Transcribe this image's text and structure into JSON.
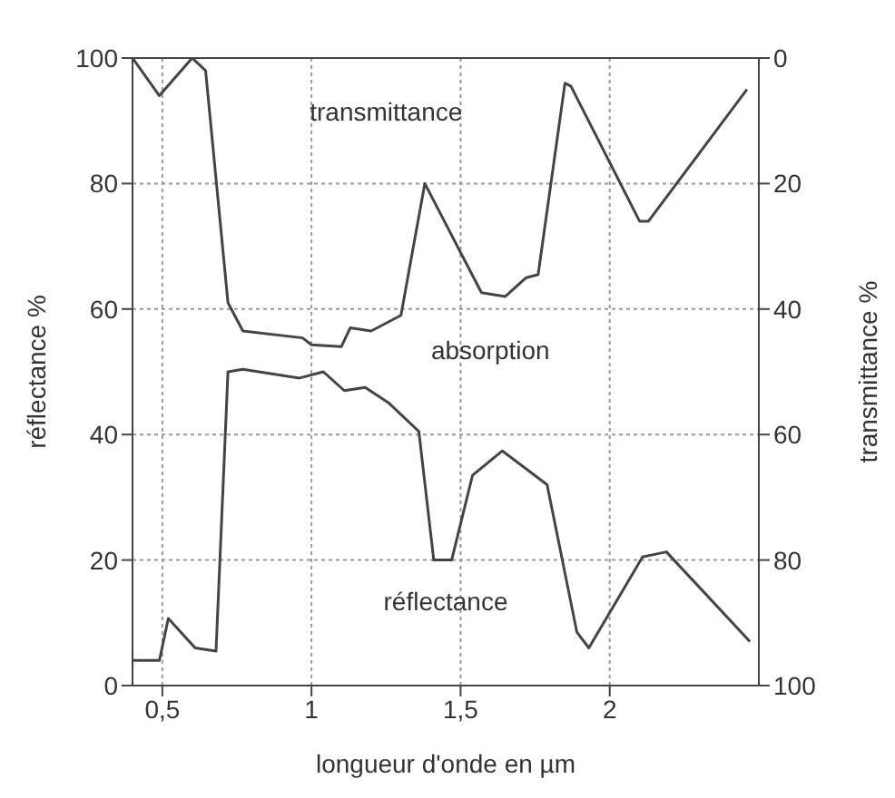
{
  "chart_data": {
    "type": "line",
    "xlabel": "longueur d'onde en µm",
    "ylabel": "réflectance %",
    "y2label": "transmittance %",
    "annotations": [
      "absorption"
    ],
    "xlim": [
      0.4,
      2.5
    ],
    "xticks": [
      {
        "value": 0.5,
        "label": "0,5"
      },
      1,
      {
        "value": 1.5,
        "label": "1,5"
      },
      2
    ],
    "ylim": [
      0,
      100
    ],
    "yticks": [
      0,
      20,
      40,
      60,
      80,
      100
    ],
    "y2lim": [
      100,
      0
    ],
    "y2ticks": [
      0,
      20,
      40,
      60,
      80,
      100
    ],
    "grid": true,
    "marker": "none",
    "line_style": "solid",
    "series": [
      {
        "name": "transmittance",
        "color": "#444444",
        "axis": "y2",
        "x": [
          0.4,
          0.49,
          0.6,
          0.645,
          0.72,
          0.77,
          0.97,
          1.0,
          1.1,
          1.13,
          1.2,
          1.3,
          1.38,
          1.57,
          1.65,
          1.72,
          1.76,
          1.85,
          1.87,
          2.1,
          2.13,
          2.46
        ],
        "values": [
          0,
          6,
          0,
          2,
          39,
          43.5,
          44.6,
          45.7,
          46,
          43,
          43.5,
          41,
          20,
          37.4,
          38,
          35,
          34.5,
          4,
          4.5,
          26,
          26,
          5
        ]
      },
      {
        "name": "réflectance",
        "color": "#444444",
        "axis": "y",
        "x": [
          0.4,
          0.49,
          0.52,
          0.61,
          0.68,
          0.72,
          0.77,
          0.96,
          1.04,
          1.11,
          1.18,
          1.26,
          1.36,
          1.41,
          1.47,
          1.54,
          1.64,
          1.79,
          1.89,
          1.93,
          2.11,
          2.19,
          2.47
        ],
        "values": [
          4,
          4,
          10.7,
          6,
          5.5,
          50,
          50.4,
          49,
          50,
          47,
          47.5,
          45,
          40.5,
          20,
          20,
          33.5,
          37.4,
          32,
          8.5,
          6,
          20.5,
          21.3,
          7
        ]
      }
    ]
  }
}
